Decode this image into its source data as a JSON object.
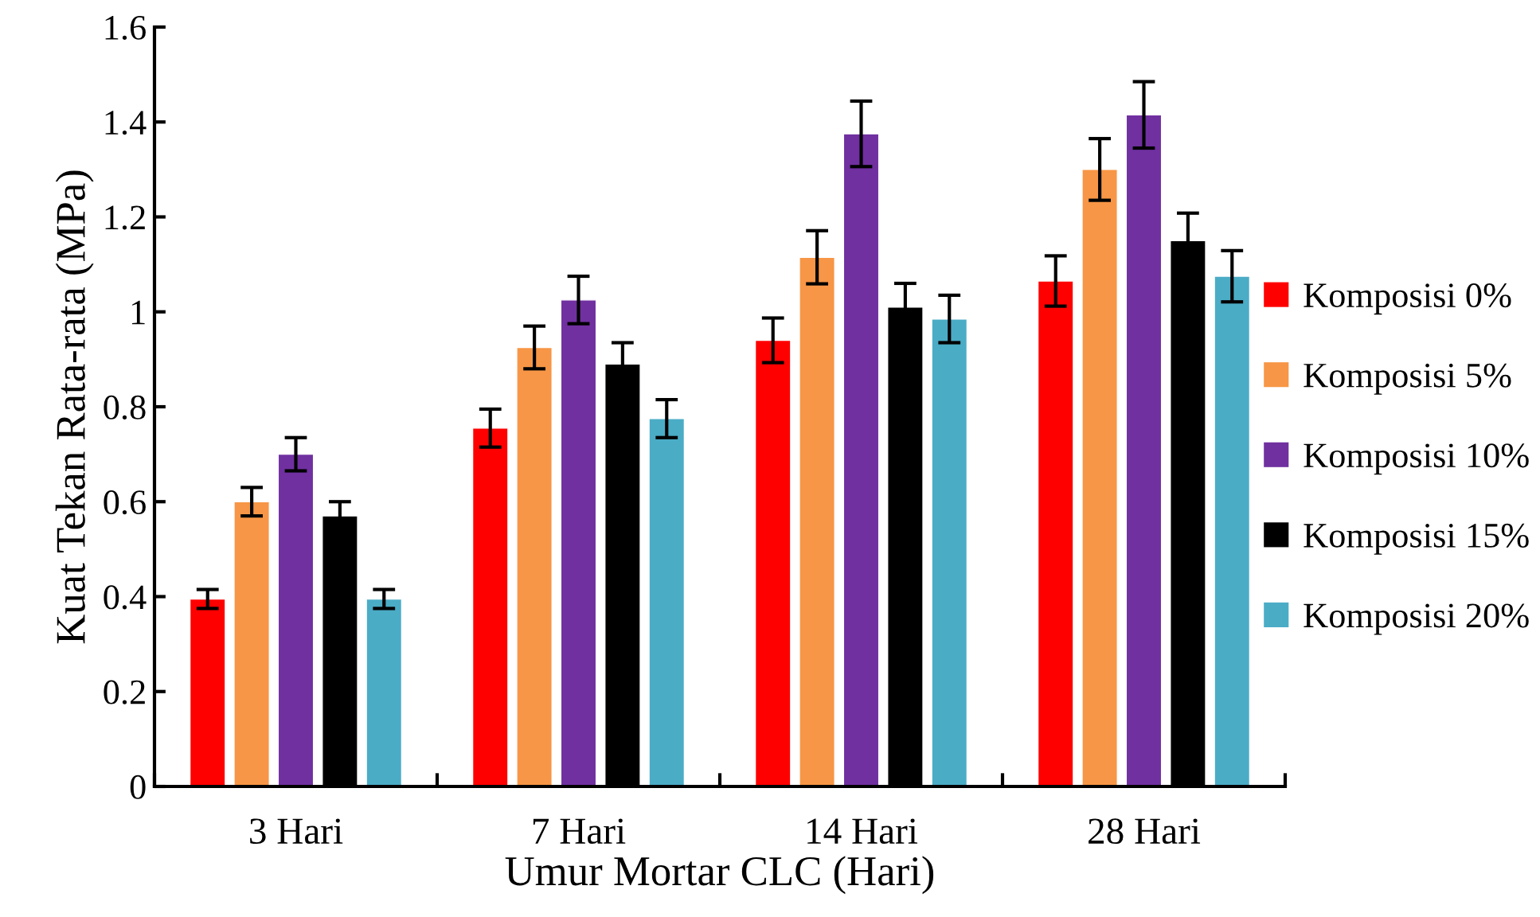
{
  "chart_data": {
    "type": "bar",
    "xlabel": "Umur Mortar CLC (Hari)",
    "ylabel": "Kuat Tekan Rata-rata (MPa)",
    "categories": [
      "3 Hari",
      "7 Hari",
      "14 Hari",
      "28 Hari"
    ],
    "series": [
      {
        "name": "Komposisi 0%",
        "color": "#ff0000",
        "values": [
          0.395,
          0.755,
          0.94,
          1.065
        ],
        "errors": [
          0.02,
          0.04,
          0.047,
          0.053
        ]
      },
      {
        "name": "Komposisi 5%",
        "color": "#f79646",
        "values": [
          0.6,
          0.925,
          1.115,
          1.3
        ],
        "errors": [
          0.03,
          0.045,
          0.056,
          0.065
        ]
      },
      {
        "name": "Komposisi 10%",
        "color": "#7030a0",
        "values": [
          0.7,
          1.025,
          1.375,
          1.415
        ],
        "errors": [
          0.035,
          0.05,
          0.069,
          0.07
        ]
      },
      {
        "name": "Komposisi 15%",
        "color": "#000000",
        "values": [
          0.57,
          0.89,
          1.01,
          1.15
        ],
        "errors": [
          0.03,
          0.045,
          0.05,
          0.058
        ]
      },
      {
        "name": "Komposisi 20%",
        "color": "#4bacc6",
        "values": [
          0.395,
          0.775,
          0.985,
          1.075
        ],
        "errors": [
          0.02,
          0.04,
          0.05,
          0.054
        ]
      }
    ],
    "ylim": [
      0,
      1.6
    ],
    "yticks": [
      0,
      0.2,
      0.4,
      0.6,
      0.8,
      1,
      1.2,
      1.4,
      1.6
    ],
    "grid": false,
    "legend": "right"
  }
}
